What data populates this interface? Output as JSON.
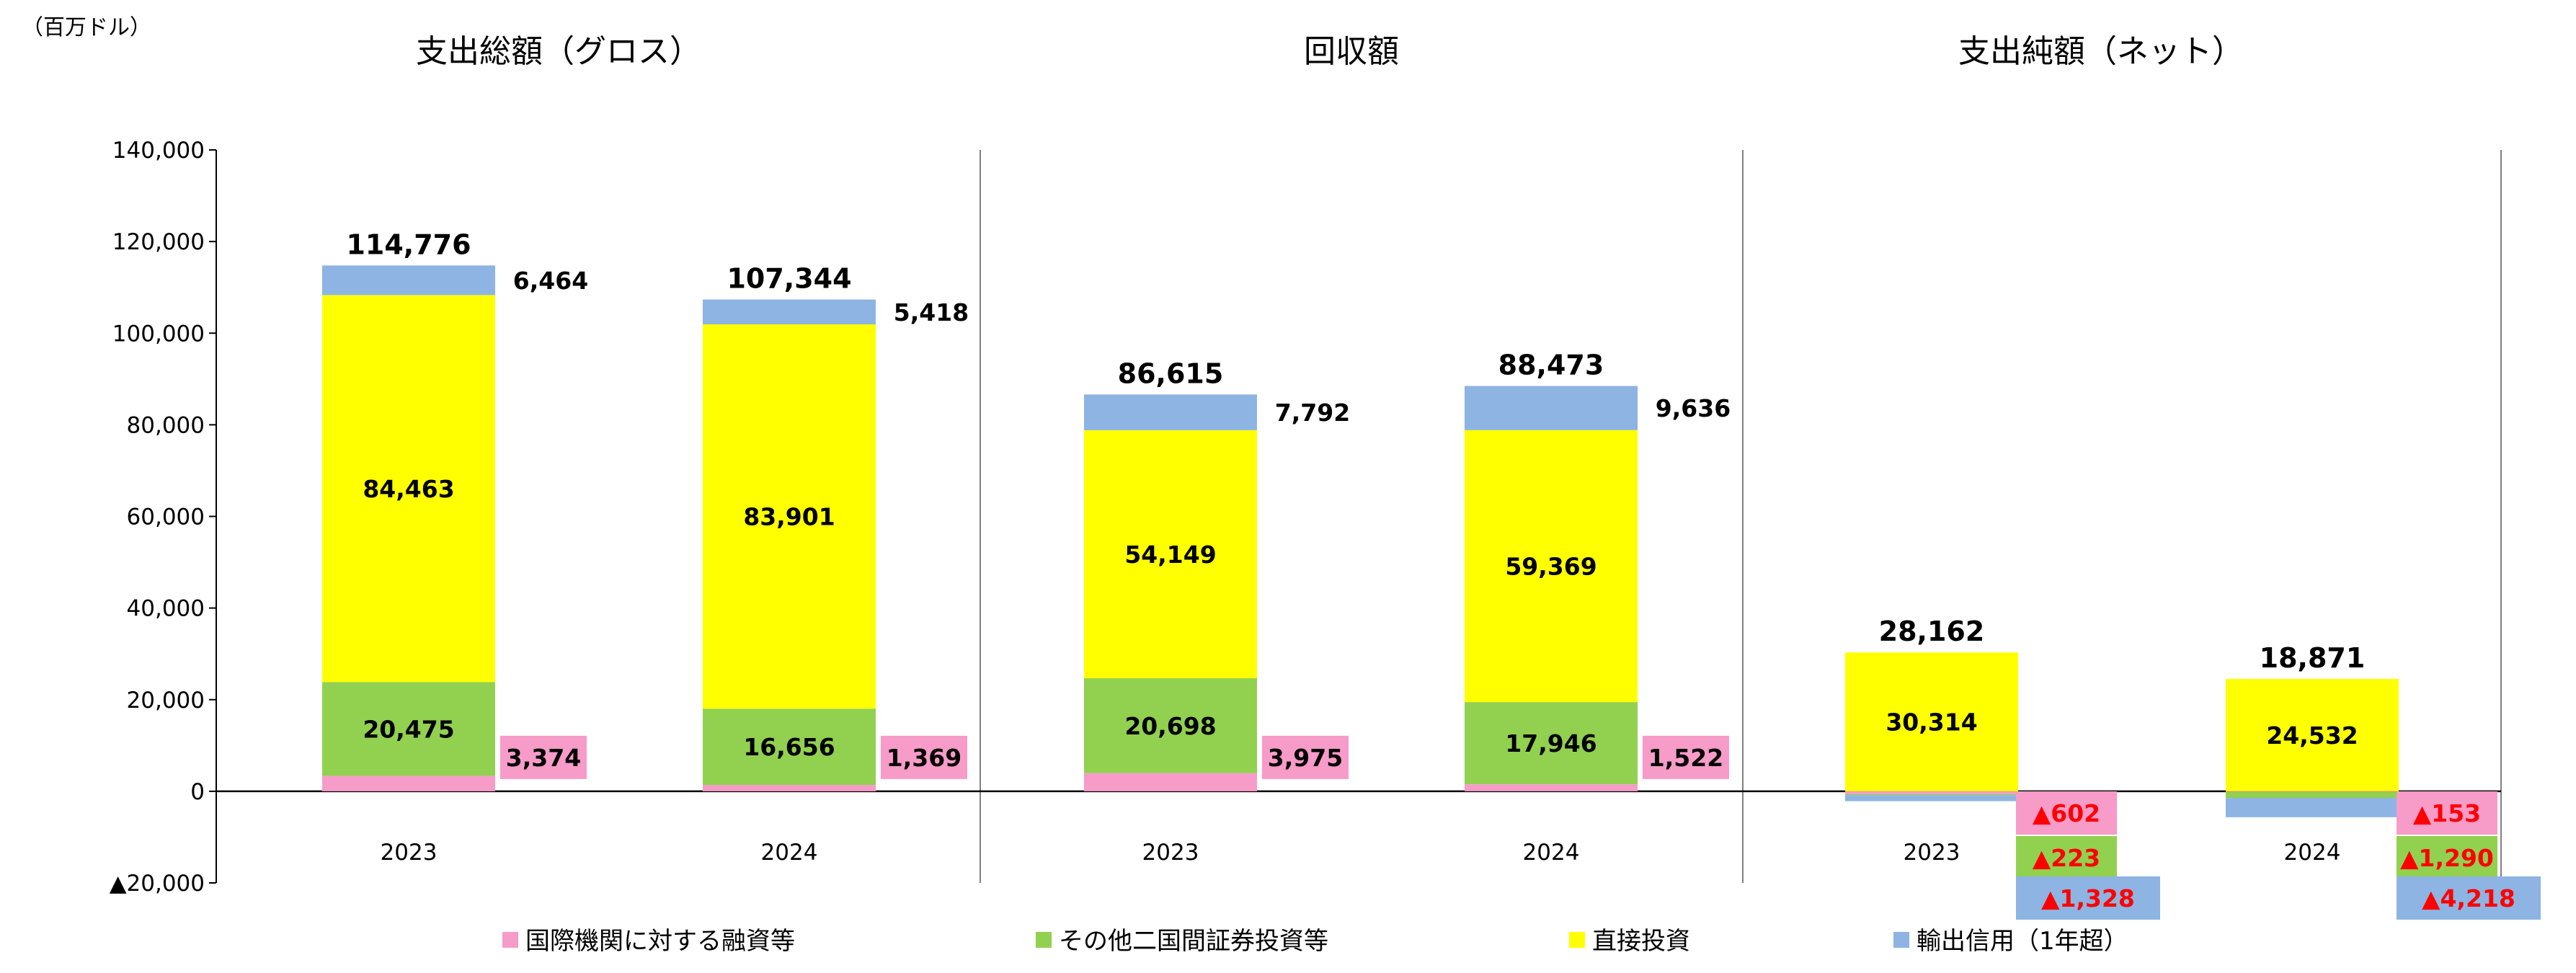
{
  "unit_label": "（百万ドル）",
  "panels": [
    {
      "title": "支出総額（グロス）"
    },
    {
      "title": "回収額"
    },
    {
      "title": "支出純額（ネット）"
    }
  ],
  "y_ticks": [
    {
      "value": 140000,
      "label": "140,000"
    },
    {
      "value": 120000,
      "label": "120,000"
    },
    {
      "value": 100000,
      "label": "100,000"
    },
    {
      "value": 80000,
      "label": "80,000"
    },
    {
      "value": 60000,
      "label": "60,000"
    },
    {
      "value": 40000,
      "label": "40,000"
    },
    {
      "value": 20000,
      "label": "20,000"
    },
    {
      "value": 0,
      "label": "0"
    },
    {
      "value": -20000,
      "label": "▲20,000"
    }
  ],
  "legend": [
    {
      "name": "国際機関に対する融資等",
      "color": "#f79bc8"
    },
    {
      "name": "その他二国間証券投資等",
      "color": "#92d050"
    },
    {
      "name": "直接投資",
      "color": "#ffff00"
    },
    {
      "name": "輸出信用（1年超）",
      "color": "#8db4e2"
    }
  ],
  "chart_data": {
    "type": "bar",
    "stacked": true,
    "ylim": [
      -20000,
      140000
    ],
    "categories": [
      {
        "panel": "支出総額（グロス）",
        "year": "2023"
      },
      {
        "panel": "支出総額（グロス）",
        "year": "2024"
      },
      {
        "panel": "回収額",
        "year": "2023"
      },
      {
        "panel": "回収額",
        "year": "2024"
      },
      {
        "panel": "支出純額（ネット）",
        "year": "2023"
      },
      {
        "panel": "支出純額（ネット）",
        "year": "2024"
      }
    ],
    "series": [
      {
        "name": "国際機関に対する融資等",
        "color": "#f79bc8",
        "values": [
          3374,
          1369,
          3975,
          1522,
          -602,
          -153
        ],
        "labels": [
          "3,374",
          "1,369",
          "3,975",
          "1,522",
          "▲602",
          "▲153"
        ]
      },
      {
        "name": "その他二国間証券投資等",
        "color": "#92d050",
        "values": [
          20475,
          16656,
          20698,
          17946,
          -223,
          -1290
        ],
        "labels": [
          "20,475",
          "16,656",
          "20,698",
          "17,946",
          "▲223",
          "▲1,290"
        ]
      },
      {
        "name": "直接投資",
        "color": "#ffff00",
        "values": [
          84463,
          83901,
          54149,
          59369,
          30314,
          24532
        ],
        "labels": [
          "84,463",
          "83,901",
          "54,149",
          "59,369",
          "30,314",
          "24,532"
        ]
      },
      {
        "name": "輸出信用（1年超）",
        "color": "#8db4e2",
        "values": [
          6464,
          5418,
          7792,
          9636,
          -1328,
          -4218
        ],
        "labels": [
          "6,464",
          "5,418",
          "7,792",
          "9,636",
          "▲1,328",
          "▲4,218"
        ]
      }
    ],
    "totals": [
      114776,
      107344,
      86615,
      88473,
      28162,
      18871
    ],
    "total_labels": [
      "114,776",
      "107,344",
      "86,615",
      "88,473",
      "28,162",
      "18,871"
    ]
  }
}
